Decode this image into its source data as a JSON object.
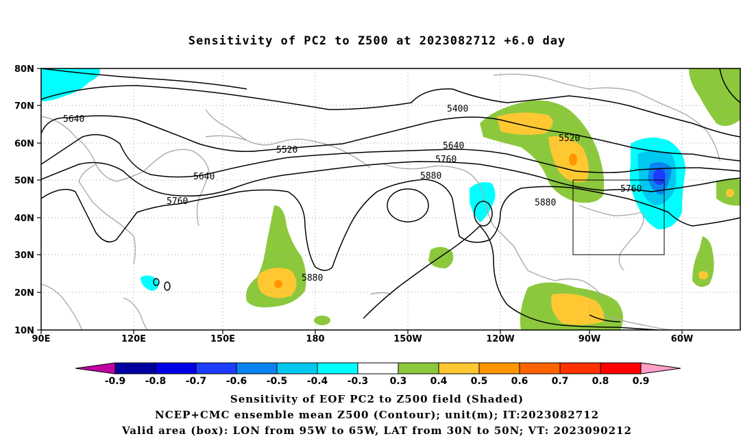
{
  "title": "Sensitivity of PC2 to Z500 at 2023082712 +6.0 day",
  "map": {
    "lon_range": [
      "90E",
      "40W"
    ],
    "lat_range": [
      "10N",
      "80N"
    ],
    "lon_ticks": [
      "90E",
      "120E",
      "150E",
      "180",
      "150W",
      "120W",
      "90W",
      "60W"
    ],
    "lat_ticks": [
      "80N",
      "70N",
      "60N",
      "50N",
      "40N",
      "30N",
      "20N",
      "10N"
    ],
    "contour_labels": [
      "5400",
      "5520",
      "5520",
      "5640",
      "5640",
      "5640",
      "5760",
      "5760",
      "5760",
      "5880",
      "5880",
      "5880"
    ],
    "valid_box": {
      "lon": [
        "95W",
        "65W"
      ],
      "lat": [
        "30N",
        "50N"
      ]
    }
  },
  "colorbar": {
    "labels": [
      "-0.9",
      "-0.8",
      "-0.7",
      "-0.6",
      "-0.5",
      "-0.4",
      "-0.3",
      "0.3",
      "0.4",
      "0.5",
      "0.6",
      "0.7",
      "0.8",
      "0.9"
    ],
    "colors": [
      "#0000a0",
      "#0000e6",
      "#1e3cff",
      "#0a82f0",
      "#00c8f0",
      "#00ffff",
      "#ffffff",
      "#8cc83c",
      "#ffc832",
      "#ff9600",
      "#ff6400",
      "#ff3200",
      "#ff0000"
    ],
    "low_end": "#c000a0",
    "high_end": "#ffa0c8"
  },
  "captions": [
    "Sensitivity of EOF PC2 to Z500 field (Shaded)",
    "NCEP+CMC ensemble mean Z500 (Contour); unit(m); IT:2023082712",
    "Valid area (box): LON from 95W to 65W, LAT from 30N to 50N; VT: 2023090212"
  ]
}
